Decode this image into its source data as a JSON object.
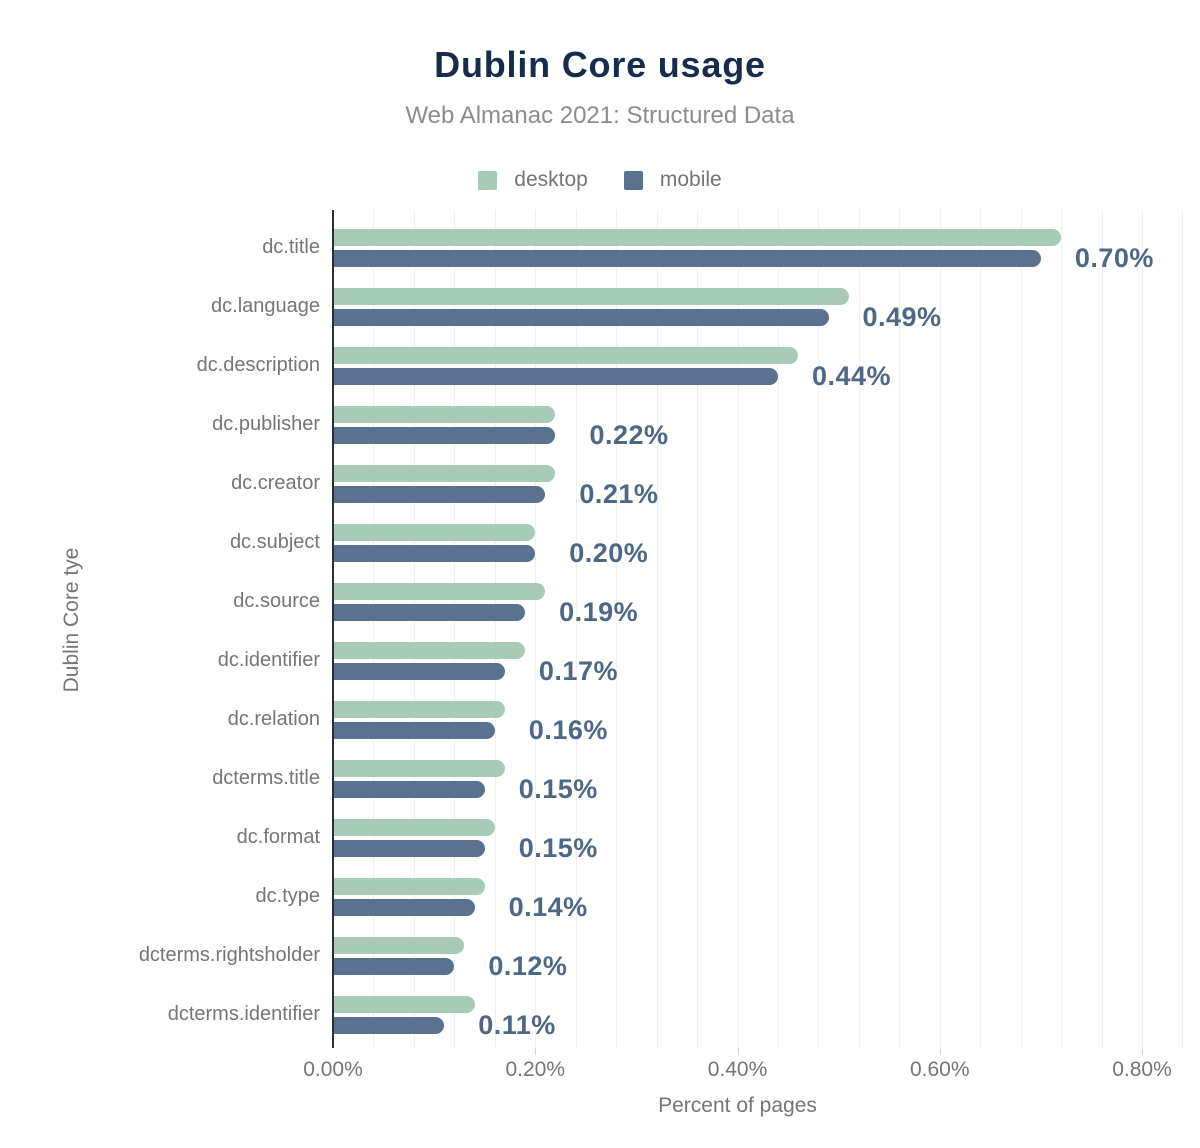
{
  "title": "Dublin Core usage",
  "subtitle": "Web Almanac 2021: Structured Data",
  "legend": [
    {
      "label": "desktop",
      "color": "#a8cbb7"
    },
    {
      "label": "mobile",
      "color": "#5a728f"
    }
  ],
  "colors": {
    "title": "#172b4d",
    "desktop_bar": "#a8cbb7",
    "mobile_bar": "#5a728f",
    "value_label": "#4e6787",
    "axis_text": "#757575",
    "gridline": "#f0f0f2",
    "axis_line": "#2f2f2f"
  },
  "chart_data": {
    "type": "bar",
    "orientation": "horizontal",
    "title": "Dublin Core usage",
    "subtitle": "Web Almanac 2021: Structured Data",
    "xlabel": "Percent of pages",
    "ylabel": "Dublin Core tye",
    "xlim": [
      0,
      0.8
    ],
    "x_tick_values": [
      0,
      0.2,
      0.4,
      0.6,
      0.8
    ],
    "x_ticks": [
      "0.00%",
      "0.20%",
      "0.40%",
      "0.60%",
      "0.80%"
    ],
    "grid": "vertical minor gridlines every 0.04%",
    "legend_position": "top",
    "categories": [
      "dc.title",
      "dc.language",
      "dc.description",
      "dc.publisher",
      "dc.creator",
      "dc.subject",
      "dc.source",
      "dc.identifier",
      "dc.relation",
      "dcterms.title",
      "dc.format",
      "dc.type",
      "dcterms.rightsholder",
      "dcterms.identifier"
    ],
    "series": [
      {
        "name": "desktop",
        "color": "#a8cbb7",
        "values": [
          0.72,
          0.51,
          0.46,
          0.22,
          0.22,
          0.2,
          0.21,
          0.19,
          0.17,
          0.17,
          0.16,
          0.15,
          0.13,
          0.14
        ]
      },
      {
        "name": "mobile",
        "color": "#5a728f",
        "values": [
          0.7,
          0.49,
          0.44,
          0.22,
          0.21,
          0.2,
          0.19,
          0.17,
          0.16,
          0.15,
          0.15,
          0.14,
          0.12,
          0.11
        ]
      }
    ],
    "value_labels": [
      "0.70%",
      "0.49%",
      "0.44%",
      "0.22%",
      "0.21%",
      "0.20%",
      "0.19%",
      "0.17%",
      "0.16%",
      "0.15%",
      "0.15%",
      "0.14%",
      "0.12%",
      "0.11%"
    ]
  }
}
